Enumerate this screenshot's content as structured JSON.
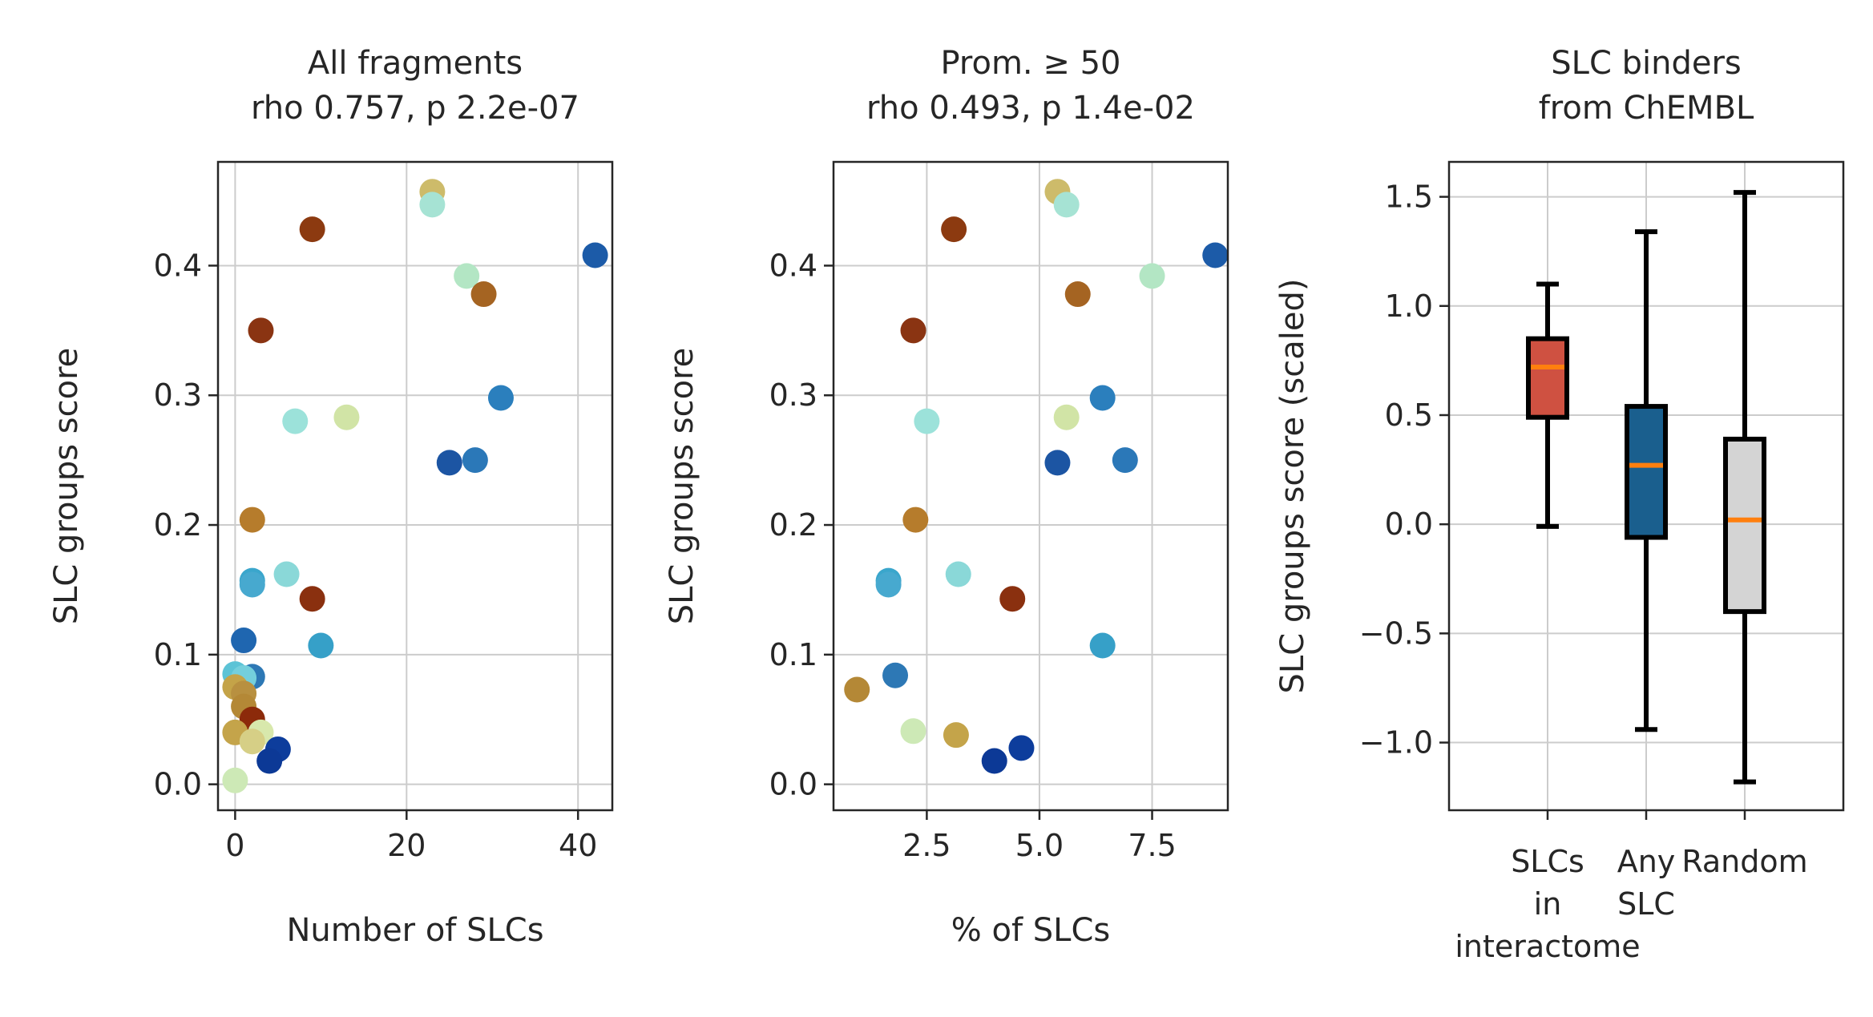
{
  "chart_data": [
    {
      "type": "scatter",
      "title": [
        "All fragments",
        "rho 0.757, p 2.2e-07"
      ],
      "xlabel": "Number of SLCs",
      "ylabel": "SLC groups score",
      "xlim": [
        -2,
        44
      ],
      "ylim": [
        -0.02,
        0.48
      ],
      "xticks": [
        0,
        20,
        40
      ],
      "xtick_labels": [
        "0",
        "20",
        "40"
      ],
      "yticks": [
        0.0,
        0.1,
        0.2,
        0.3,
        0.4
      ],
      "ytick_labels": [
        "0.0",
        "0.1",
        "0.2",
        "0.3",
        "0.4"
      ],
      "grid": true,
      "points": [
        {
          "x": 23,
          "y": 0.457,
          "color": "#cdbb6a"
        },
        {
          "x": 23,
          "y": 0.447,
          "color": "#a6e3d4"
        },
        {
          "x": 9,
          "y": 0.428,
          "color": "#8c3a10"
        },
        {
          "x": 42,
          "y": 0.408,
          "color": "#1c5ba8"
        },
        {
          "x": 27,
          "y": 0.392,
          "color": "#b3e6c4"
        },
        {
          "x": 29,
          "y": 0.378,
          "color": "#a56422"
        },
        {
          "x": 3,
          "y": 0.35,
          "color": "#8a3412"
        },
        {
          "x": 31,
          "y": 0.298,
          "color": "#2b7fbd"
        },
        {
          "x": 13,
          "y": 0.283,
          "color": "#d1e4a6"
        },
        {
          "x": 7,
          "y": 0.28,
          "color": "#9ce2da"
        },
        {
          "x": 28,
          "y": 0.25,
          "color": "#2b78b8"
        },
        {
          "x": 25,
          "y": 0.248,
          "color": "#1c55a3"
        },
        {
          "x": 2,
          "y": 0.204,
          "color": "#b67c2c"
        },
        {
          "x": 6,
          "y": 0.162,
          "color": "#8ad8d8"
        },
        {
          "x": 2,
          "y": 0.157,
          "color": "#3aa6cc"
        },
        {
          "x": 2,
          "y": 0.154,
          "color": "#47a9cf"
        },
        {
          "x": 9,
          "y": 0.143,
          "color": "#8a300f"
        },
        {
          "x": 1,
          "y": 0.111,
          "color": "#1f66b0"
        },
        {
          "x": 10,
          "y": 0.107,
          "color": "#36a0c8"
        },
        {
          "x": 0,
          "y": 0.085,
          "color": "#5cc3d6"
        },
        {
          "x": 2,
          "y": 0.083,
          "color": "#2d78b5"
        },
        {
          "x": 1,
          "y": 0.082,
          "color": "#74cfdc"
        },
        {
          "x": 0,
          "y": 0.075,
          "color": "#c4a348"
        },
        {
          "x": 1,
          "y": 0.07,
          "color": "#b89040"
        },
        {
          "x": 1,
          "y": 0.06,
          "color": "#b48836"
        },
        {
          "x": 2,
          "y": 0.05,
          "color": "#8c2a0a"
        },
        {
          "x": 0,
          "y": 0.04,
          "color": "#c4a44a"
        },
        {
          "x": 3,
          "y": 0.04,
          "color": "#d8e8ac"
        },
        {
          "x": 2,
          "y": 0.033,
          "color": "#d6cf86"
        },
        {
          "x": 5,
          "y": 0.027,
          "color": "#0d3d9c"
        },
        {
          "x": 4,
          "y": 0.018,
          "color": "#0c3996"
        },
        {
          "x": 0,
          "y": 0.003,
          "color": "#cde9b6"
        }
      ]
    },
    {
      "type": "scatter",
      "title": [
        "Prom. ≥ 50",
        "rho 0.493, p 1.4e-02"
      ],
      "xlabel": "% of SLCs",
      "ylabel": "SLC groups score",
      "xlim": [
        0.43,
        9.18
      ],
      "ylim": [
        -0.02,
        0.48
      ],
      "xticks": [
        2.5,
        5.0,
        7.5
      ],
      "xtick_labels": [
        "2.5",
        "5.0",
        "7.5"
      ],
      "yticks": [
        0.0,
        0.1,
        0.2,
        0.3,
        0.4
      ],
      "ytick_labels": [
        "0.0",
        "0.1",
        "0.2",
        "0.3",
        "0.4"
      ],
      "grid": true,
      "points": [
        {
          "x": 5.4,
          "y": 0.457,
          "color": "#cdbb6a"
        },
        {
          "x": 5.6,
          "y": 0.447,
          "color": "#a6e3d4"
        },
        {
          "x": 3.1,
          "y": 0.428,
          "color": "#8c3a10"
        },
        {
          "x": 8.9,
          "y": 0.408,
          "color": "#1c5ba8"
        },
        {
          "x": 7.5,
          "y": 0.392,
          "color": "#b3e6c4"
        },
        {
          "x": 5.85,
          "y": 0.378,
          "color": "#a56422"
        },
        {
          "x": 2.2,
          "y": 0.35,
          "color": "#8a3412"
        },
        {
          "x": 6.4,
          "y": 0.298,
          "color": "#2b7fbd"
        },
        {
          "x": 5.6,
          "y": 0.283,
          "color": "#d1e4a6"
        },
        {
          "x": 2.5,
          "y": 0.28,
          "color": "#9ce2da"
        },
        {
          "x": 6.9,
          "y": 0.25,
          "color": "#2b78b8"
        },
        {
          "x": 5.4,
          "y": 0.248,
          "color": "#1c55a3"
        },
        {
          "x": 2.25,
          "y": 0.204,
          "color": "#b67c2c"
        },
        {
          "x": 3.2,
          "y": 0.162,
          "color": "#8ad8d8"
        },
        {
          "x": 1.65,
          "y": 0.157,
          "color": "#3aa6cc"
        },
        {
          "x": 1.65,
          "y": 0.154,
          "color": "#47a9cf"
        },
        {
          "x": 4.4,
          "y": 0.143,
          "color": "#8a300f"
        },
        {
          "x": 6.4,
          "y": 0.107,
          "color": "#36a0c8"
        },
        {
          "x": 1.8,
          "y": 0.084,
          "color": "#2d78b5"
        },
        {
          "x": 0.95,
          "y": 0.073,
          "color": "#b48836"
        },
        {
          "x": 2.2,
          "y": 0.041,
          "color": "#cde9b6"
        },
        {
          "x": 3.15,
          "y": 0.038,
          "color": "#c4a44a"
        },
        {
          "x": 4.6,
          "y": 0.028,
          "color": "#0d3d9c"
        },
        {
          "x": 4.0,
          "y": 0.018,
          "color": "#0c3996"
        }
      ]
    },
    {
      "type": "box",
      "title": [
        "SLC binders",
        "from ChEMBL"
      ],
      "xlabel": "",
      "ylabel": "SLC groups score (scaled)",
      "ylim": [
        -1.31,
        1.66
      ],
      "yticks": [
        -1.0,
        -0.5,
        0.0,
        0.5,
        1.0,
        1.5
      ],
      "ytick_labels": [
        "−1.0",
        "−0.5",
        "0.0",
        "0.5",
        "1.0",
        "1.5"
      ],
      "grid": true,
      "median_color": "#ff7f0e",
      "boxes": [
        {
          "label": [
            "SLCs",
            "in",
            "interactome"
          ],
          "whislo": -0.01,
          "q1": 0.49,
          "med": 0.72,
          "q3": 0.85,
          "whishi": 1.1,
          "color": "#cf5141"
        },
        {
          "label": [
            "Any",
            "SLC"
          ],
          "whislo": -0.94,
          "q1": -0.06,
          "med": 0.27,
          "q3": 0.54,
          "whishi": 1.34,
          "color": "#1a5f8e"
        },
        {
          "label": [
            "Random"
          ],
          "whislo": -1.18,
          "q1": -0.4,
          "med": 0.02,
          "q3": 0.39,
          "whishi": 1.52,
          "color": "#d4d4d4"
        }
      ]
    }
  ]
}
